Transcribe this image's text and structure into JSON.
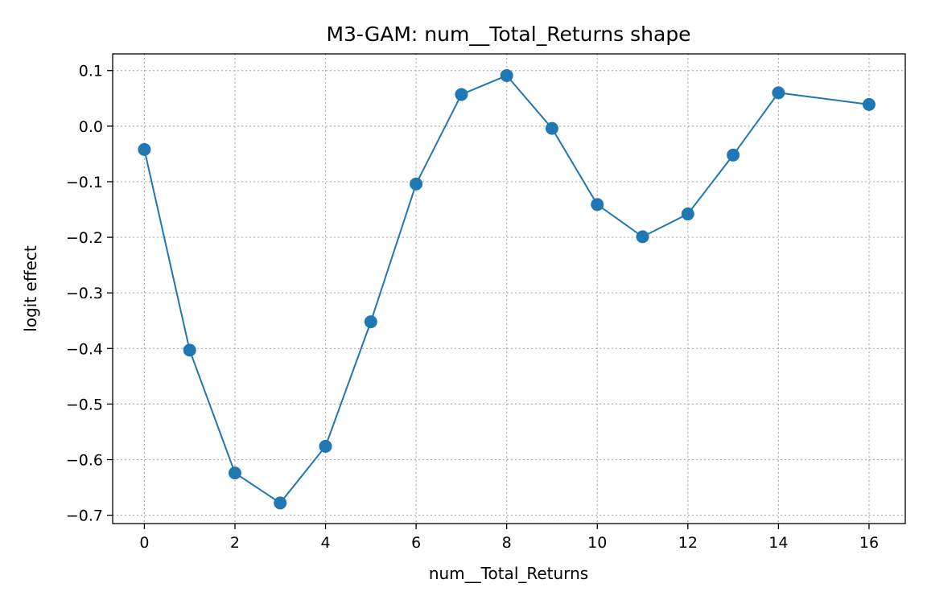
{
  "chart_data": {
    "type": "line",
    "title": "M3-GAM: num__Total_Returns shape",
    "xlabel": "num__Total_Returns",
    "ylabel": "logit effect",
    "xlim": [
      -0.7,
      16.8
    ],
    "ylim": [
      -0.715,
      0.13
    ],
    "xticks": [
      0,
      2,
      4,
      6,
      8,
      10,
      12,
      14,
      16
    ],
    "yticks": [
      0.1,
      0.0,
      -0.1,
      -0.2,
      -0.3,
      -0.4,
      -0.5,
      -0.6,
      -0.7
    ],
    "grid": true,
    "series": [
      {
        "color": "#1f77b4",
        "marker": "circle",
        "x": [
          0,
          1,
          2,
          3,
          4,
          5,
          6,
          7,
          8,
          9,
          10,
          11,
          12,
          13,
          14,
          16
        ],
        "y": [
          -0.042,
          -0.403,
          -0.624,
          -0.678,
          -0.576,
          -0.352,
          -0.104,
          0.057,
          0.091,
          -0.004,
          -0.141,
          -0.199,
          -0.158,
          -0.052,
          0.06,
          0.039
        ]
      }
    ]
  }
}
